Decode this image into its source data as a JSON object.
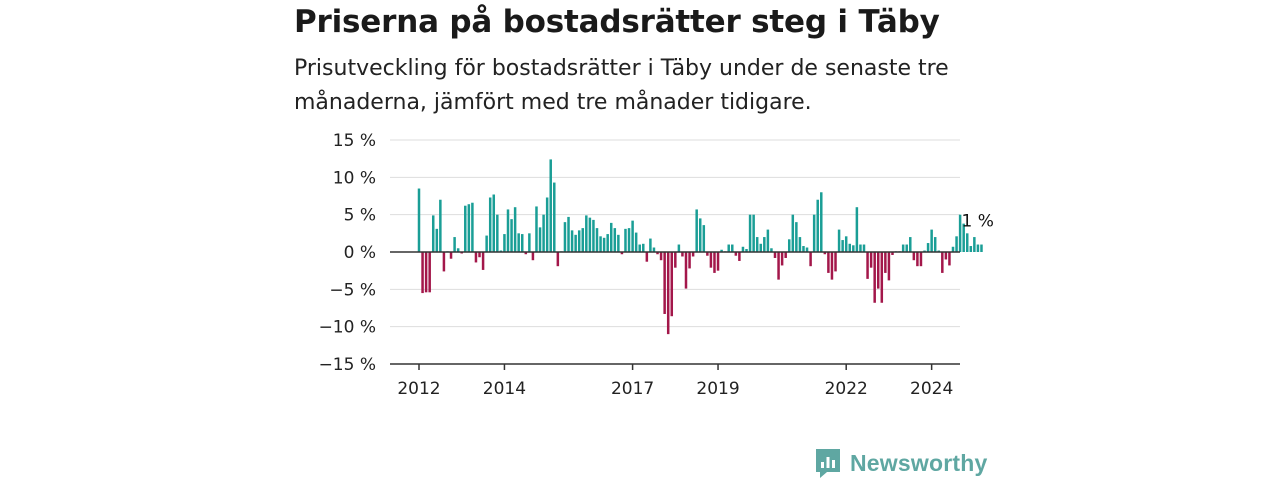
{
  "header": {
    "title": "Priserna på bostadsrätter steg i Täby",
    "subtitle": "Prisutveckling för bostadsrätter i Täby under de senaste tre månaderna, jämfört med tre månader tidigare."
  },
  "brand": {
    "name": "Newsworthy",
    "icon": "newsworthy-logo-icon",
    "color": "#5fa7a2"
  },
  "colors": {
    "positive": "#1a9e96",
    "negative": "#a3174a",
    "grid": "#dddddd",
    "axis": "#333333"
  },
  "chart_data": {
    "type": "bar",
    "title": "Priserna på bostadsrätter steg i Täby",
    "xlabel": "",
    "ylabel": "",
    "ylim": [
      -15,
      15
    ],
    "yticks": [
      15,
      10,
      5,
      0,
      -5,
      -10,
      -15
    ],
    "ytick_labels": [
      "15 %",
      "10 %",
      "5 %",
      "0 %",
      "−5 %",
      "−10 %",
      "−15 %"
    ],
    "x_start": "2012-01",
    "x_end": "2024-10",
    "xticks": [
      "2012",
      "2014",
      "2017",
      "2019",
      "2022",
      "2024"
    ],
    "grid": true,
    "last_value_label": "1 %",
    "series": [
      {
        "values": [
          8.5,
          -5.5,
          -5.4,
          -5.4,
          4.9,
          3.1,
          7.0,
          -2.6,
          0.1,
          -0.9,
          2.0,
          0.5,
          -0.2,
          6.2,
          6.4,
          6.6,
          -1.4,
          -0.7,
          -2.4,
          2.2,
          7.3,
          7.7,
          5.0,
          0.2,
          2.4,
          5.7,
          4.4,
          6.0,
          2.5,
          2.4,
          -0.3,
          2.5,
          -1.1,
          6.1,
          3.3,
          5.0,
          7.3,
          12.4,
          9.3,
          -1.9,
          0.1,
          4.0,
          4.7,
          2.9,
          2.3,
          2.9,
          3.2,
          4.9,
          4.6,
          4.3,
          3.2,
          2.1,
          1.9,
          2.4,
          3.9,
          3.2,
          2.3,
          -0.3,
          3.1,
          3.2,
          4.2,
          2.6,
          1.0,
          1.1,
          -1.3,
          1.8,
          0.6,
          -0.3,
          -1.1,
          -8.3,
          -11.0,
          -8.6,
          -2.1,
          1.0,
          -0.6,
          -4.9,
          -2.2,
          -0.6,
          5.7,
          4.5,
          3.6,
          -0.5,
          -2.1,
          -2.8,
          -2.5,
          0.3,
          0.1,
          1.0,
          1.0,
          -0.5,
          -1.2,
          0.7,
          0.4,
          5.0,
          5.0,
          2.0,
          1.1,
          2.0,
          3.0,
          0.5,
          -0.8,
          -3.7,
          -1.8,
          -0.8,
          1.7,
          5.0,
          4.0,
          2.0,
          0.8,
          0.6,
          -1.9,
          5.0,
          7.0,
          8.0,
          -0.3,
          -2.8,
          -3.7,
          -2.6,
          3.0,
          1.6,
          2.1,
          1.1,
          0.9,
          6.0,
          1.0,
          1.0,
          -3.6,
          -2.1,
          -6.8,
          -4.9,
          -6.8,
          -2.8,
          -3.8,
          -0.4,
          0.1,
          0.1,
          1.0,
          1.0,
          2.0,
          -1.1,
          -1.9,
          -1.9,
          0.2,
          1.2,
          3.0,
          2.0,
          0.2,
          -2.8,
          -1.0,
          -1.8,
          0.7,
          2.1,
          5.0,
          3.8,
          2.5,
          0.8,
          2.0,
          1.0,
          1.0
        ]
      }
    ]
  }
}
